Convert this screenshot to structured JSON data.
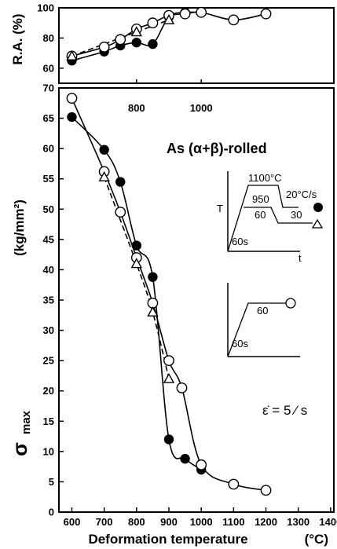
{
  "chart_data": [
    {
      "type": "line",
      "panel": "top",
      "ylabel": "R.A. (%)",
      "ylim": [
        50,
        100
      ],
      "yticks": [
        "60",
        "80",
        "100"
      ],
      "xlim": [
        560,
        1410
      ],
      "inner_x_ticks": [
        "800",
        "1000"
      ],
      "series": [
        {
          "marker": "filled-circle",
          "linestyle": "solid",
          "x": [
            600,
            700,
            750,
            800,
            850,
            900,
            950,
            1000
          ],
          "y": [
            65,
            71,
            75,
            77,
            76,
            94,
            97,
            97
          ]
        },
        {
          "marker": "open-circle",
          "linestyle": "solid",
          "x": [
            600,
            700,
            750,
            800,
            850,
            900,
            950,
            1000,
            1100,
            1200
          ],
          "y": [
            68,
            74,
            79,
            86,
            90,
            95,
            96,
            97,
            92,
            96
          ]
        },
        {
          "marker": "open-triangle",
          "linestyle": "dashed",
          "x": [
            600,
            800,
            900
          ],
          "y": [
            68,
            84,
            92
          ]
        }
      ]
    },
    {
      "type": "line",
      "panel": "bottom",
      "xlabel": "Deformation temperature",
      "xunit": "(°C)",
      "ylabel": "(kg/mm²)",
      "ysymbol": "σ",
      "ysub": "max",
      "xlim": [
        560,
        1410
      ],
      "ylim": [
        0,
        70
      ],
      "xticks": [
        "600",
        "700",
        "800",
        "900",
        "1000",
        "1100",
        "1200",
        "1300",
        "1400"
      ],
      "yticks": [
        "0",
        "5",
        "10",
        "15",
        "20",
        "25",
        "30",
        "35",
        "40",
        "45",
        "50",
        "55",
        "60",
        "65",
        "70"
      ],
      "series": [
        {
          "marker": "filled-circle",
          "linestyle": "solid",
          "x": [
            600,
            700,
            750,
            800,
            850,
            900,
            950,
            1000
          ],
          "y": [
            65.2,
            59.8,
            54.5,
            44,
            38.8,
            12,
            8.8,
            7
          ]
        },
        {
          "marker": "open-circle",
          "linestyle": "solid",
          "x": [
            600,
            700,
            750,
            800,
            850,
            900,
            940,
            1000,
            1100,
            1200
          ],
          "y": [
            68.3,
            56.2,
            49.5,
            42,
            34.5,
            25,
            20.5,
            7.8,
            4.6,
            3.6
          ]
        },
        {
          "marker": "open-triangle",
          "linestyle": "dashed",
          "x": [
            700,
            800,
            850,
            900
          ],
          "y": [
            55.3,
            41,
            33,
            22
          ]
        }
      ]
    }
  ],
  "annotations": {
    "title": "As (α+β)-rolled",
    "strain_rate": "ε̇ = 5 ⁄ s",
    "inset1": {
      "top_temp": "1100°C",
      "mid_temp": "950",
      "low_temp": "60",
      "rate": "20°C/s",
      "hold": "30",
      "time": "60s",
      "axis_y": "T",
      "axis_x": "t"
    },
    "inset2": {
      "temp": "60",
      "time": "60s"
    }
  }
}
